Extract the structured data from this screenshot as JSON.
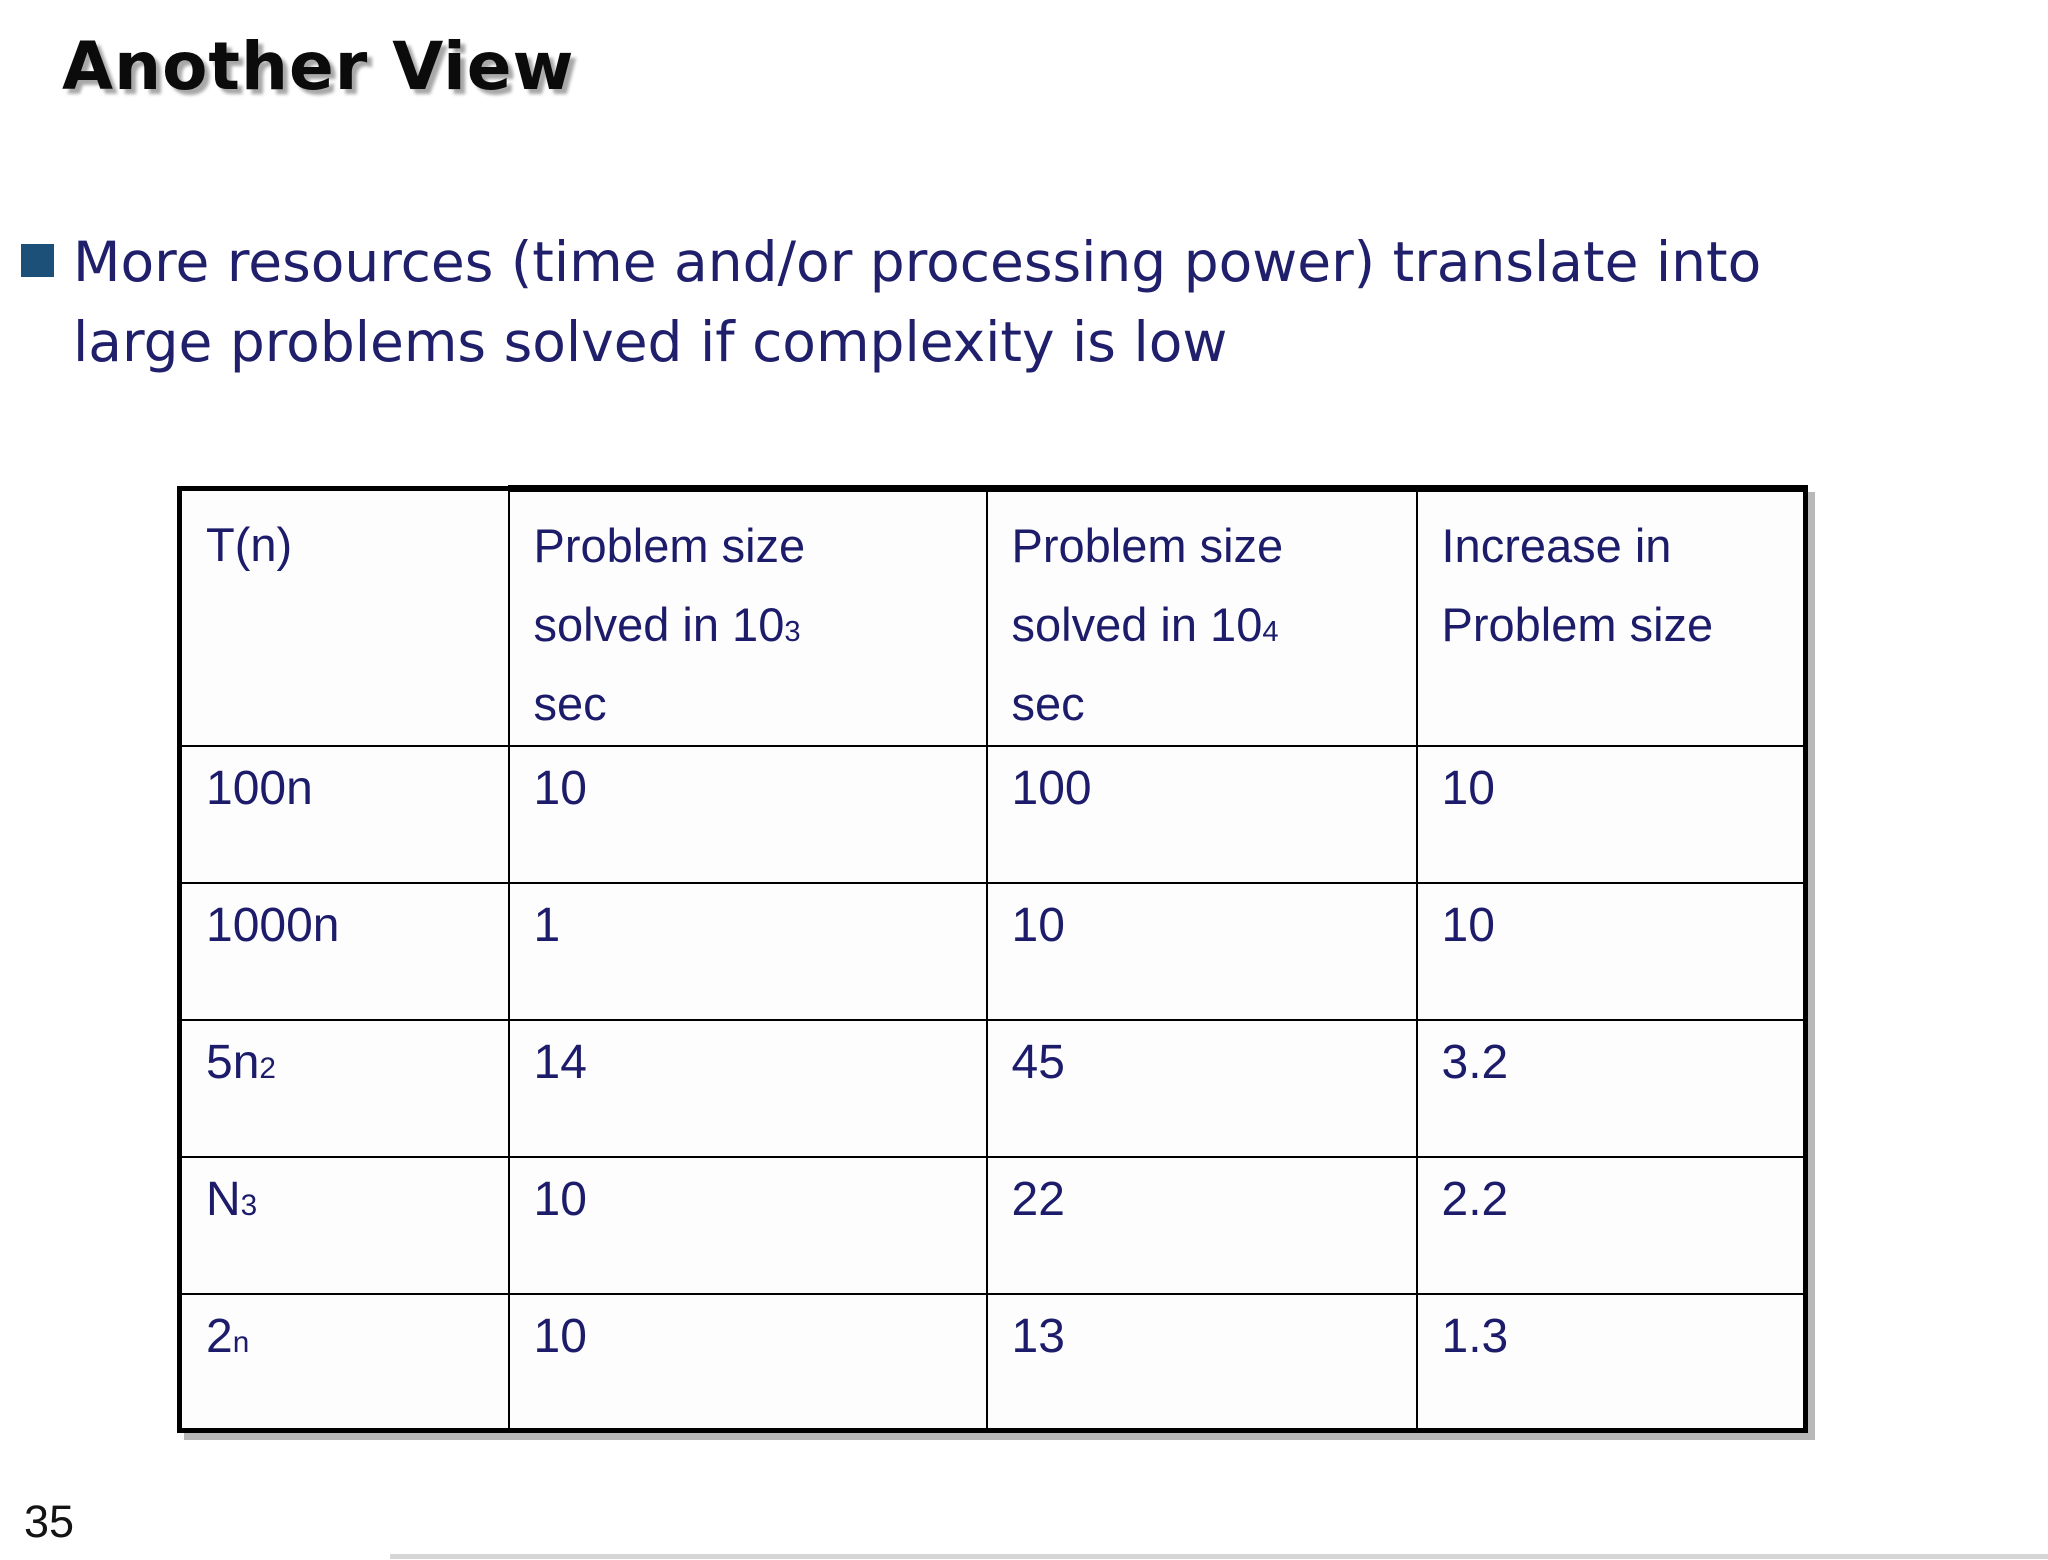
{
  "slide": {
    "title": "Another View",
    "page_number": "35",
    "bullet": {
      "lines": [
        "More resources (time and/or processing power) translate into",
        "large problems solved if complexity is low"
      ]
    }
  },
  "table": {
    "headers": [
      "T(n)",
      "Problem size\nsolved in 10^3\nsec",
      "Problem size\nsolved in 10^4\nsec",
      "Increase in\nProblem size"
    ],
    "rows": [
      [
        "100n",
        "10",
        "100",
        "10"
      ],
      [
        "1000n",
        "1",
        "10",
        "10"
      ],
      [
        "5n^2",
        "14",
        "45",
        "3.2"
      ],
      [
        "N^3",
        "10",
        "22",
        "2.2"
      ],
      [
        "2^n",
        "10",
        "13",
        "1.3"
      ]
    ]
  },
  "colors": {
    "title_text": "#0b0b0b",
    "body_text_navy": "#1f1f6b",
    "table_text_navy": "#1c1c6a",
    "bullet_square": "#1d5078",
    "table_border": "#000000",
    "background": "#ffffff"
  }
}
